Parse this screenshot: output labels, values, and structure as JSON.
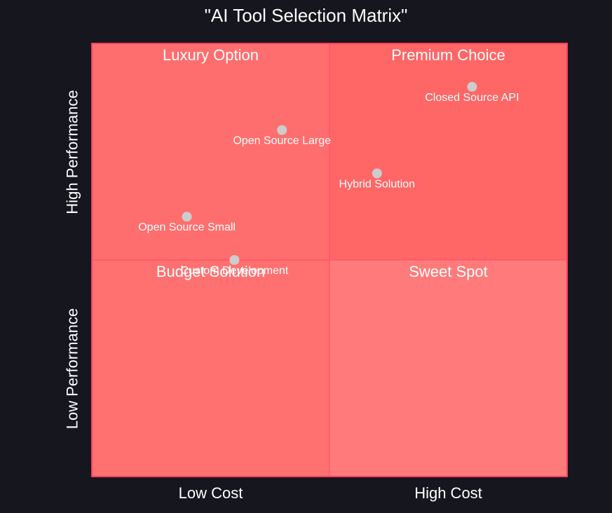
{
  "chart_data": {
    "type": "scatter",
    "title": "\"AI Tool Selection Matrix\"",
    "x_axis": {
      "labels": [
        "Low Cost",
        "High Cost"
      ],
      "range": [
        0,
        1
      ]
    },
    "y_axis": {
      "labels": [
        "Low Performance",
        "High Performance"
      ],
      "range": [
        0,
        1
      ]
    },
    "quadrants": [
      {
        "label": "Luxury Option",
        "position": "top-left",
        "color": "#ff6e6e"
      },
      {
        "label": "Premium Choice",
        "position": "top-right",
        "color": "#ff6666"
      },
      {
        "label": "Budget Solution",
        "position": "bottom-left",
        "color": "#ff7070"
      },
      {
        "label": "Sweet Spot",
        "position": "bottom-right",
        "color": "#ff7b7b"
      }
    ],
    "points": [
      {
        "name": "Closed Source API",
        "x": 0.8,
        "y": 0.9
      },
      {
        "name": "Open Source Large",
        "x": 0.4,
        "y": 0.8
      },
      {
        "name": "Hybrid Solution",
        "x": 0.6,
        "y": 0.7
      },
      {
        "name": "Open Source Small",
        "x": 0.2,
        "y": 0.6
      },
      {
        "name": "Custom Development",
        "x": 0.3,
        "y": 0.5
      }
    ],
    "point_color": "#cccccc",
    "grid": false,
    "legend": "none"
  }
}
